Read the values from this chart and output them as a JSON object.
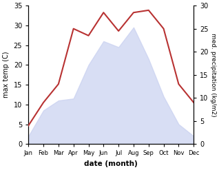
{
  "months": [
    "Jan",
    "Feb",
    "Mar",
    "Apr",
    "May",
    "Jun",
    "Jul",
    "Aug",
    "Sep",
    "Oct",
    "Nov",
    "Dec"
  ],
  "temp": [
    2.0,
    8.5,
    11.0,
    11.5,
    20.0,
    26.0,
    24.5,
    29.5,
    21.5,
    12.0,
    5.0,
    2.0
  ],
  "precip": [
    4.0,
    9.0,
    13.0,
    25.0,
    23.5,
    28.5,
    24.5,
    28.5,
    29.0,
    25.0,
    13.0,
    9.0
  ],
  "temp_fill_color": "#c8d0f0",
  "temp_fill_alpha": 0.7,
  "precip_color": "#b83232",
  "left_ylim": [
    0,
    35
  ],
  "right_ylim": [
    0,
    30
  ],
  "left_yticks": [
    0,
    5,
    10,
    15,
    20,
    25,
    30,
    35
  ],
  "right_yticks": [
    0,
    5,
    10,
    15,
    20,
    25,
    30
  ],
  "xlabel": "date (month)",
  "ylabel_left": "max temp (C)",
  "ylabel_right": "med. precipitation (kg/m2)"
}
